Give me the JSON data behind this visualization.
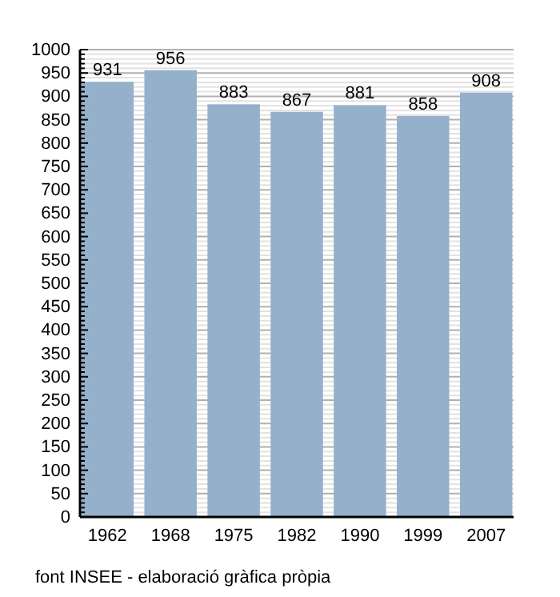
{
  "chart_data": {
    "type": "bar",
    "categories": [
      "1962",
      "1968",
      "1975",
      "1982",
      "1990",
      "1999",
      "2007"
    ],
    "values": [
      931,
      956,
      883,
      867,
      881,
      858,
      908
    ],
    "color": "#95b0cb",
    "data_labels": true,
    "grid": "y",
    "ylim": [
      0,
      1000
    ],
    "yticks": [
      0,
      {
        "value": 10,
        "label": null
      },
      {
        "value": 20,
        "label": null
      },
      {
        "value": 30,
        "label": null
      },
      {
        "value": 40,
        "label": null
      },
      50,
      {
        "value": 60,
        "label": null
      },
      {
        "value": 70,
        "label": null
      },
      {
        "value": 80,
        "label": null
      },
      {
        "value": 90,
        "label": null
      },
      100,
      {
        "value": 110,
        "label": null
      },
      {
        "value": 120,
        "label": null
      },
      {
        "value": 130,
        "label": null
      },
      {
        "value": 140,
        "label": null
      },
      150,
      {
        "value": 160,
        "label": null
      },
      {
        "value": 170,
        "label": null
      },
      {
        "value": 180,
        "label": null
      },
      {
        "value": 190,
        "label": null
      },
      200,
      {
        "value": 210,
        "label": null
      },
      {
        "value": 220,
        "label": null
      },
      {
        "value": 230,
        "label": null
      },
      {
        "value": 240,
        "label": null
      },
      250,
      {
        "value": 260,
        "label": null
      },
      {
        "value": 270,
        "label": null
      },
      {
        "value": 280,
        "label": null
      },
      {
        "value": 290,
        "label": null
      },
      300,
      {
        "value": 310,
        "label": null
      },
      {
        "value": 320,
        "label": null
      },
      {
        "value": 330,
        "label": null
      },
      {
        "value": 340,
        "label": null
      },
      350,
      {
        "value": 360,
        "label": null
      },
      {
        "value": 370,
        "label": null
      },
      {
        "value": 380,
        "label": null
      },
      {
        "value": 390,
        "label": null
      },
      400,
      {
        "value": 410,
        "label": null
      },
      {
        "value": 420,
        "label": null
      },
      {
        "value": 430,
        "label": null
      },
      {
        "value": 440,
        "label": null
      },
      450,
      {
        "value": 460,
        "label": null
      },
      {
        "value": 470,
        "label": null
      },
      {
        "value": 480,
        "label": null
      },
      {
        "value": 490,
        "label": null
      },
      500,
      {
        "value": 510,
        "label": null
      },
      {
        "value": 520,
        "label": null
      },
      {
        "value": 530,
        "label": null
      },
      {
        "value": 540,
        "label": null
      },
      550,
      {
        "value": 560,
        "label": null
      },
      {
        "value": 570,
        "label": null
      },
      {
        "value": 580,
        "label": null
      },
      {
        "value": 590,
        "label": null
      },
      600,
      {
        "value": 610,
        "label": null
      },
      {
        "value": 620,
        "label": null
      },
      {
        "value": 630,
        "label": null
      },
      {
        "value": 640,
        "label": null
      },
      650,
      {
        "value": 660,
        "label": null
      },
      {
        "value": 670,
        "label": null
      },
      {
        "value": 680,
        "label": null
      },
      {
        "value": 690,
        "label": null
      },
      700,
      {
        "value": 710,
        "label": null
      },
      {
        "value": 720,
        "label": null
      },
      {
        "value": 730,
        "label": null
      },
      {
        "value": 740,
        "label": null
      },
      750,
      {
        "value": 760,
        "label": null
      },
      {
        "value": 770,
        "label": null
      },
      {
        "value": 780,
        "label": null
      },
      {
        "value": 790,
        "label": null
      },
      800,
      {
        "value": 810,
        "label": null
      },
      {
        "value": 820,
        "label": null
      },
      {
        "value": 830,
        "label": null
      },
      {
        "value": 840,
        "label": null
      },
      850,
      {
        "value": 860,
        "label": null
      },
      {
        "value": 870,
        "label": null
      },
      {
        "value": 880,
        "label": null
      },
      {
        "value": 890,
        "label": null
      },
      900,
      {
        "value": 910,
        "label": null
      },
      {
        "value": 920,
        "label": null
      },
      {
        "value": 930,
        "label": null
      },
      {
        "value": 940,
        "label": null
      },
      950,
      {
        "value": 960,
        "label": null
      },
      {
        "value": 970,
        "label": null
      },
      {
        "value": 980,
        "label": null
      },
      {
        "value": 990,
        "label": null
      },
      1000
    ],
    "annotations": [
      "font INSEE - elaboració gràfica pròpia"
    ]
  }
}
